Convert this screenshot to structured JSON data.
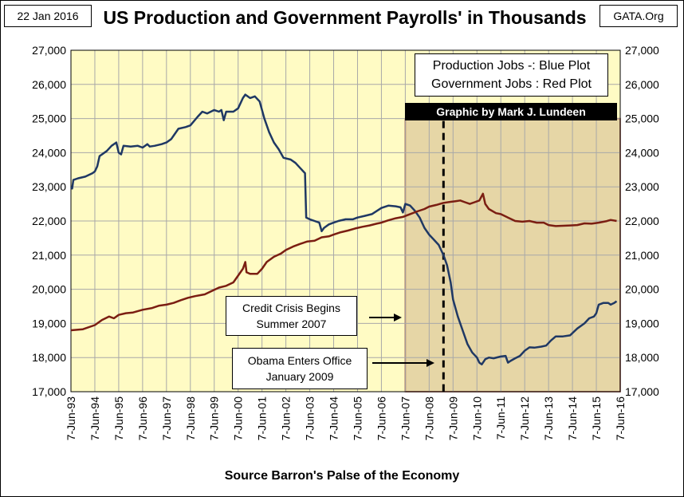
{
  "header": {
    "date": "22 Jan 2016",
    "site": "GATA.Org",
    "title": "US Production and Government Payrolls' in Thousands"
  },
  "colors": {
    "plot_background": "#fffbc4",
    "shaded_region": "#e6d6a6",
    "shaded_border": "#8b2a1c",
    "production_line": "#1f3864",
    "government_line": "#7b1e12",
    "grid": "#a8a8a8"
  },
  "chart_data": {
    "type": "line",
    "title": "US Production and Government Payrolls' in Thousands",
    "xlabel": "Source Barron's Palse of the Economy",
    "ylabel": "",
    "ylim": [
      17000,
      27000
    ],
    "yticks": [
      17000,
      18000,
      19000,
      20000,
      21000,
      22000,
      23000,
      24000,
      25000,
      26000,
      27000
    ],
    "ytick_labels": [
      "17,000",
      "18,000",
      "19,000",
      "20,000",
      "21,000",
      "22,000",
      "23,000",
      "24,000",
      "25,000",
      "26,000",
      "27,000"
    ],
    "x_range": [
      1993,
      2016
    ],
    "xtick_labels": [
      "7-Jun-93",
      "7-Jun-94",
      "7-Jun-95",
      "7-Jun-96",
      "7-Jun-97",
      "7-Jun-98",
      "7-Jun-99",
      "7-Jun-00",
      "7-Jun-01",
      "7-Jun-02",
      "7-Jun-03",
      "7-Jun-04",
      "7-Jun-05",
      "7-Jun-06",
      "7-Jun-07",
      "7-Jun-08",
      "7-Jun-09",
      "7-Jun-10",
      "7-Jun-11",
      "7-Jun-12",
      "7-Jun-13",
      "7-Jun-14",
      "7-Jun-15",
      "7-Jun-16"
    ],
    "grid": true,
    "shaded_region": {
      "from": 2007,
      "to": 2016,
      "top": 25000
    },
    "event_line": {
      "x": 2008.6
    },
    "series": [
      {
        "name": "Production Jobs",
        "color": "#1f3864",
        "points": [
          [
            1993.0,
            23000
          ],
          [
            1993.05,
            22950
          ],
          [
            1993.1,
            23200
          ],
          [
            1993.3,
            23250
          ],
          [
            1993.6,
            23300
          ],
          [
            1993.9,
            23400
          ],
          [
            1994.0,
            23450
          ],
          [
            1994.1,
            23600
          ],
          [
            1994.2,
            23900
          ],
          [
            1994.5,
            24050
          ],
          [
            1994.7,
            24200
          ],
          [
            1994.9,
            24300
          ],
          [
            1995.0,
            24000
          ],
          [
            1995.1,
            23950
          ],
          [
            1995.2,
            24200
          ],
          [
            1995.5,
            24180
          ],
          [
            1995.8,
            24200
          ],
          [
            1996.0,
            24150
          ],
          [
            1996.2,
            24250
          ],
          [
            1996.3,
            24180
          ],
          [
            1996.5,
            24200
          ],
          [
            1996.8,
            24250
          ],
          [
            1997.0,
            24300
          ],
          [
            1997.2,
            24400
          ],
          [
            1997.3,
            24500
          ],
          [
            1997.5,
            24700
          ],
          [
            1997.8,
            24750
          ],
          [
            1998.0,
            24800
          ],
          [
            1998.3,
            25050
          ],
          [
            1998.5,
            25200
          ],
          [
            1998.7,
            25150
          ],
          [
            1999.0,
            25250
          ],
          [
            1999.2,
            25200
          ],
          [
            1999.3,
            25250
          ],
          [
            1999.4,
            24950
          ],
          [
            1999.5,
            25200
          ],
          [
            1999.8,
            25200
          ],
          [
            2000.0,
            25300
          ],
          [
            2000.2,
            25600
          ],
          [
            2000.3,
            25700
          ],
          [
            2000.4,
            25650
          ],
          [
            2000.5,
            25600
          ],
          [
            2000.7,
            25650
          ],
          [
            2000.9,
            25500
          ],
          [
            2001.1,
            25000
          ],
          [
            2001.3,
            24600
          ],
          [
            2001.5,
            24300
          ],
          [
            2001.7,
            24100
          ],
          [
            2001.9,
            23850
          ],
          [
            2002.2,
            23800
          ],
          [
            2002.4,
            23700
          ],
          [
            2002.6,
            23550
          ],
          [
            2002.8,
            23400
          ],
          [
            2002.85,
            22100
          ],
          [
            2003.0,
            22050
          ],
          [
            2003.2,
            22000
          ],
          [
            2003.4,
            21950
          ],
          [
            2003.5,
            21700
          ],
          [
            2003.6,
            21800
          ],
          [
            2003.8,
            21900
          ],
          [
            2004.0,
            21950
          ],
          [
            2004.2,
            22000
          ],
          [
            2004.5,
            22050
          ],
          [
            2004.8,
            22050
          ],
          [
            2005.0,
            22100
          ],
          [
            2005.3,
            22150
          ],
          [
            2005.6,
            22200
          ],
          [
            2006.0,
            22380
          ],
          [
            2006.3,
            22450
          ],
          [
            2006.6,
            22430
          ],
          [
            2006.8,
            22400
          ],
          [
            2006.9,
            22250
          ],
          [
            2007.0,
            22500
          ],
          [
            2007.2,
            22450
          ],
          [
            2007.4,
            22300
          ],
          [
            2007.6,
            22100
          ],
          [
            2007.8,
            21800
          ],
          [
            2008.0,
            21600
          ],
          [
            2008.2,
            21450
          ],
          [
            2008.4,
            21300
          ],
          [
            2008.6,
            21000
          ],
          [
            2008.75,
            20700
          ],
          [
            2008.9,
            20200
          ],
          [
            2009.0,
            19700
          ],
          [
            2009.2,
            19200
          ],
          [
            2009.4,
            18800
          ],
          [
            2009.6,
            18400
          ],
          [
            2009.8,
            18150
          ],
          [
            2010.0,
            18000
          ],
          [
            2010.1,
            17850
          ],
          [
            2010.2,
            17800
          ],
          [
            2010.35,
            17950
          ],
          [
            2010.5,
            18000
          ],
          [
            2010.7,
            17980
          ],
          [
            2011.0,
            18030
          ],
          [
            2011.2,
            18050
          ],
          [
            2011.3,
            17850
          ],
          [
            2011.4,
            17900
          ],
          [
            2011.6,
            17980
          ],
          [
            2011.8,
            18050
          ],
          [
            2012.0,
            18200
          ],
          [
            2012.2,
            18300
          ],
          [
            2012.4,
            18290
          ],
          [
            2012.7,
            18320
          ],
          [
            2012.9,
            18350
          ],
          [
            2013.1,
            18500
          ],
          [
            2013.3,
            18620
          ],
          [
            2013.6,
            18620
          ],
          [
            2013.9,
            18650
          ],
          [
            2014.2,
            18850
          ],
          [
            2014.5,
            19000
          ],
          [
            2014.7,
            19150
          ],
          [
            2014.9,
            19200
          ],
          [
            2015.0,
            19300
          ],
          [
            2015.1,
            19550
          ],
          [
            2015.3,
            19600
          ],
          [
            2015.5,
            19600
          ],
          [
            2015.6,
            19550
          ],
          [
            2015.75,
            19600
          ],
          [
            2015.85,
            19650
          ]
        ]
      },
      {
        "name": "Government Jobs",
        "color": "#7b1e12",
        "points": [
          [
            1993.0,
            18800
          ],
          [
            1993.5,
            18830
          ],
          [
            1994.0,
            18950
          ],
          [
            1994.3,
            19100
          ],
          [
            1994.6,
            19200
          ],
          [
            1994.8,
            19150
          ],
          [
            1995.0,
            19250
          ],
          [
            1995.3,
            19300
          ],
          [
            1995.6,
            19320
          ],
          [
            1996.0,
            19400
          ],
          [
            1996.4,
            19450
          ],
          [
            1996.7,
            19520
          ],
          [
            1997.0,
            19550
          ],
          [
            1997.3,
            19600
          ],
          [
            1997.6,
            19680
          ],
          [
            1997.9,
            19750
          ],
          [
            1998.2,
            19800
          ],
          [
            1998.6,
            19850
          ],
          [
            1998.9,
            19950
          ],
          [
            1999.2,
            20050
          ],
          [
            1999.5,
            20100
          ],
          [
            1999.8,
            20200
          ],
          [
            2000.0,
            20400
          ],
          [
            2000.2,
            20600
          ],
          [
            2000.3,
            20800
          ],
          [
            2000.35,
            20500
          ],
          [
            2000.5,
            20450
          ],
          [
            2000.8,
            20450
          ],
          [
            2001.0,
            20600
          ],
          [
            2001.2,
            20800
          ],
          [
            2001.5,
            20950
          ],
          [
            2001.8,
            21050
          ],
          [
            2002.0,
            21150
          ],
          [
            2002.3,
            21250
          ],
          [
            2002.6,
            21330
          ],
          [
            2002.9,
            21400
          ],
          [
            2003.2,
            21420
          ],
          [
            2003.5,
            21520
          ],
          [
            2003.8,
            21550
          ],
          [
            2004.0,
            21600
          ],
          [
            2004.3,
            21670
          ],
          [
            2004.6,
            21720
          ],
          [
            2004.9,
            21780
          ],
          [
            2005.2,
            21830
          ],
          [
            2005.5,
            21870
          ],
          [
            2005.8,
            21920
          ],
          [
            2006.0,
            21950
          ],
          [
            2006.3,
            22020
          ],
          [
            2006.6,
            22080
          ],
          [
            2006.9,
            22120
          ],
          [
            2007.2,
            22200
          ],
          [
            2007.5,
            22280
          ],
          [
            2007.8,
            22350
          ],
          [
            2008.0,
            22420
          ],
          [
            2008.3,
            22470
          ],
          [
            2008.6,
            22530
          ],
          [
            2008.9,
            22560
          ],
          [
            2009.1,
            22580
          ],
          [
            2009.3,
            22600
          ],
          [
            2009.5,
            22550
          ],
          [
            2009.7,
            22500
          ],
          [
            2009.9,
            22550
          ],
          [
            2010.1,
            22600
          ],
          [
            2010.25,
            22800
          ],
          [
            2010.35,
            22500
          ],
          [
            2010.5,
            22350
          ],
          [
            2010.8,
            22230
          ],
          [
            2011.0,
            22200
          ],
          [
            2011.3,
            22100
          ],
          [
            2011.6,
            22000
          ],
          [
            2011.9,
            21980
          ],
          [
            2012.2,
            22000
          ],
          [
            2012.5,
            21950
          ],
          [
            2012.8,
            21950
          ],
          [
            2013.0,
            21880
          ],
          [
            2013.3,
            21850
          ],
          [
            2013.6,
            21860
          ],
          [
            2013.9,
            21870
          ],
          [
            2014.2,
            21880
          ],
          [
            2014.5,
            21930
          ],
          [
            2014.8,
            21920
          ],
          [
            2015.1,
            21950
          ],
          [
            2015.4,
            21990
          ],
          [
            2015.6,
            22030
          ],
          [
            2015.85,
            22000
          ]
        ]
      }
    ]
  },
  "annotations": {
    "legend_line1": "Production Jobs -: Blue Plot",
    "legend_line2": "Government Jobs : Red Plot",
    "graphic_credit": "Graphic by Mark J. Lundeen",
    "credit_crisis_line1": "Credit Crisis Begins",
    "credit_crisis_line2": "Summer 2007",
    "obama_line1": "Obama Enters Office",
    "obama_line2": "January 2009"
  }
}
